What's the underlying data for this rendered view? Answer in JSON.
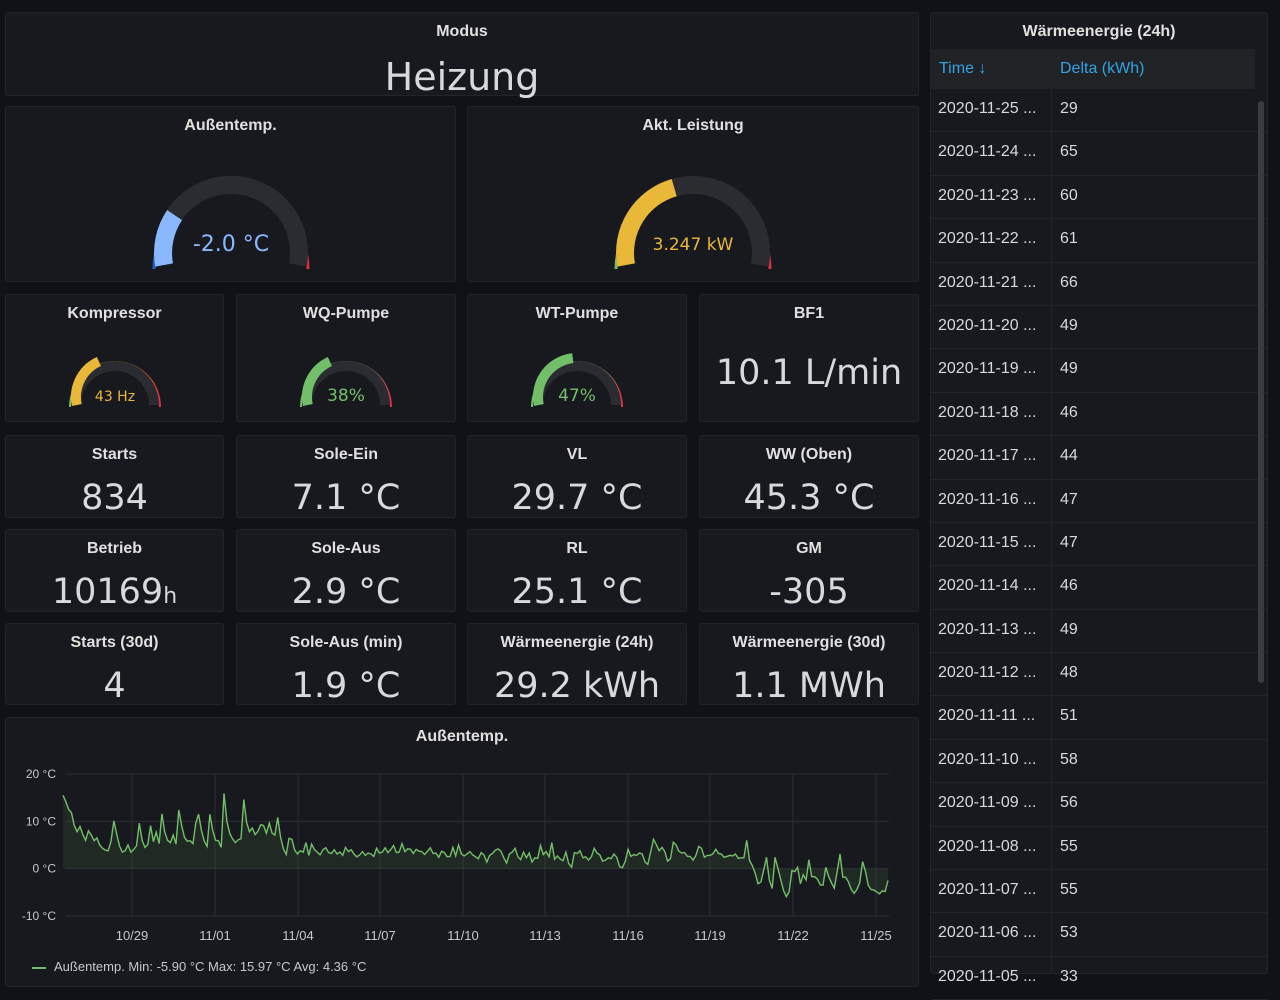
{
  "modus": {
    "title": "Modus",
    "value": "Heizung"
  },
  "aussentemp_gauge": {
    "title": "Außentemp.",
    "value": "-2.0 °C",
    "fraction": 0.22
  },
  "leistung_gauge": {
    "title": "Akt. Leistung",
    "value": "3.247 kW",
    "fraction": 0.42
  },
  "small_gauges": [
    {
      "title": "Kompressor",
      "value": "43 Hz",
      "color": "#eab839",
      "fraction": 0.38
    },
    {
      "title": "WQ-Pumpe",
      "value": "38%",
      "color": "#73bf69",
      "fraction": 0.38
    },
    {
      "title": "WT-Pumpe",
      "value": "47%",
      "color": "#73bf69",
      "fraction": 0.47
    }
  ],
  "bf1": {
    "title": "BF1",
    "value": "10.1 L/min"
  },
  "stats": [
    {
      "title": "Starts",
      "value": "834"
    },
    {
      "title": "Sole-Ein",
      "value": "7.1 °C"
    },
    {
      "title": "VL",
      "value": "29.7 °C"
    },
    {
      "title": "WW (Oben)",
      "value": "45.3 °C"
    },
    {
      "title": "Betrieb",
      "value": "10169",
      "unit": "h"
    },
    {
      "title": "Sole-Aus",
      "value": "2.9 °C"
    },
    {
      "title": "RL",
      "value": "25.1 °C"
    },
    {
      "title": "GM",
      "value": "-305"
    },
    {
      "title": "Starts (30d)",
      "value": "4"
    },
    {
      "title": "Sole-Aus (min)",
      "value": "1.9 °C"
    },
    {
      "title": "Wärmeenergie (24h)",
      "value": "29.2 kWh"
    },
    {
      "title": "Wärmeenergie (30d)",
      "value": "1.1 MWh"
    }
  ],
  "table": {
    "title": "Wärmeenergie (24h)",
    "col_time": "Time ↓",
    "col_delta": "Delta (kWh)",
    "rows": [
      [
        "2020-11-25 ...",
        "29"
      ],
      [
        "2020-11-24 ...",
        "65"
      ],
      [
        "2020-11-23 ...",
        "60"
      ],
      [
        "2020-11-22 ...",
        "61"
      ],
      [
        "2020-11-21 ...",
        "66"
      ],
      [
        "2020-11-20 ...",
        "49"
      ],
      [
        "2020-11-19 ...",
        "49"
      ],
      [
        "2020-11-18 ...",
        "46"
      ],
      [
        "2020-11-17 ...",
        "44"
      ],
      [
        "2020-11-16 ...",
        "47"
      ],
      [
        "2020-11-15 ...",
        "47"
      ],
      [
        "2020-11-14 ...",
        "46"
      ],
      [
        "2020-11-13 ...",
        "49"
      ],
      [
        "2020-11-12 ...",
        "48"
      ],
      [
        "2020-11-11 ...",
        "51"
      ],
      [
        "2020-11-10 ...",
        "58"
      ],
      [
        "2020-11-09 ...",
        "56"
      ],
      [
        "2020-11-08 ...",
        "55"
      ],
      [
        "2020-11-07 ...",
        "55"
      ],
      [
        "2020-11-06 ...",
        "53"
      ],
      [
        "2020-11-05 ...",
        "33"
      ]
    ]
  },
  "chart_data": {
    "type": "line",
    "title": "Außentemp.",
    "series": [
      {
        "name": "Außentemp.",
        "color": "#73bf69"
      }
    ],
    "ylim": [
      -10,
      20
    ],
    "yticks": [
      "20 °C",
      "10 °C",
      "0 °C",
      "-10 °C"
    ],
    "xticks": [
      "10/29",
      "11/01",
      "11/04",
      "11/07",
      "11/10",
      "11/13",
      "11/16",
      "11/19",
      "11/22",
      "11/25"
    ],
    "x_range_days": [
      "2020-10-27",
      "2020-11-25"
    ],
    "legend_text": "Außentemp.  Min: -5.90 °C  Max: 15.97 °C  Avg: 4.36 °C",
    "values": [
      15.5,
      14.2,
      12.5,
      11.8,
      9.1,
      7.8,
      8.9,
      7.2,
      6.0,
      8.0,
      7.1,
      5.9,
      6.5,
      5.0,
      4.3,
      3.9,
      3.8,
      5.8,
      10.1,
      7.3,
      4.8,
      3.5,
      3.8,
      5.0,
      3.5,
      4.0,
      4.8,
      9.6,
      6.0,
      4.5,
      5.1,
      9.1,
      5.7,
      7.7,
      5.3,
      11.6,
      7.8,
      6.0,
      5.5,
      7.1,
      5.2,
      12.4,
      9.1,
      6.6,
      5.8,
      5.9,
      5.3,
      9.7,
      11.5,
      8.1,
      5.8,
      4.7,
      11.5,
      8.1,
      6.0,
      5.9,
      4.5,
      15.9,
      10.0,
      7.5,
      6.3,
      5.5,
      6.1,
      6.3,
      14.6,
      9.8,
      7.8,
      8.6,
      7.2,
      7.9,
      9.3,
      9.1,
      7.5,
      9.6,
      7.5,
      7.1,
      10.8,
      6.6,
      4.2,
      3.0,
      6.4,
      6.2,
      3.9,
      3.1,
      3.8,
      3.5,
      5.5,
      2.8,
      5.2,
      4.0,
      3.5,
      2.9,
      4.0,
      4.4,
      3.4,
      3.2,
      4.0,
      3.1,
      3.5,
      2.8,
      4.5,
      3.6,
      4.0,
      3.1,
      2.5,
      2.9,
      3.6,
      2.8,
      3.3,
      3.1,
      2.6,
      4.3,
      3.3,
      3.5,
      4.4,
      3.4,
      4.0,
      4.9,
      3.4,
      3.5,
      5.3,
      3.6,
      4.2,
      4.1,
      3.2,
      4.1,
      3.7,
      3.6,
      3.0,
      3.7,
      4.4,
      3.2,
      3.3,
      2.4,
      3.7,
      3.4,
      2.5,
      2.6,
      4.5,
      2.7,
      5.0,
      3.1,
      2.7,
      3.1,
      3.6,
      2.9,
      2.5,
      2.1,
      3.4,
      2.9,
      1.4,
      2.8,
      3.2,
      3.9,
      4.2,
      3.7,
      2.3,
      1.2,
      3.1,
      3.5,
      4.3,
      2.5,
      1.9,
      3.5,
      2.3,
      3.3,
      1.4,
      2.3,
      2.2,
      4.9,
      3.0,
      3.6,
      2.5,
      5.5,
      2.0,
      2.7,
      2.0,
      1.7,
      3.5,
      1.1,
      0.3,
      3.4,
      3.2,
      3.8,
      2.3,
      2.5,
      1.8,
      2.5,
      4.3,
      3.3,
      2.9,
      1.6,
      1.8,
      2.3,
      2.1,
      3.1,
      2.4,
      0.4,
      0.2,
      1.5,
      4.1,
      2.6,
      3.0,
      2.8,
      3.3,
      3.1,
      1.4,
      0.9,
      3.6,
      6.2,
      5.1,
      3.8,
      4.5,
      3.6,
      1.6,
      2.1,
      5.6,
      5.0,
      3.7,
      3.3,
      3.4,
      2.6,
      2.6,
      1.8,
      2.8,
      4.7,
      4.3,
      2.4,
      2.8,
      2.8,
      3.1,
      4.1,
      3.2,
      3.1,
      2.4,
      2.6,
      2.8,
      2.7,
      3.1,
      2.2,
      2.3,
      2.3,
      6.0,
      1.7,
      0.6,
      -1.0,
      -3.2,
      -2.8,
      -0.3,
      2.4,
      -2.4,
      -4.2,
      2.4,
      0.2,
      -2.2,
      -4.6,
      -5.9,
      -4.9,
      -0.4,
      -0.6,
      0.3,
      -3.2,
      -1.3,
      -2.4,
      1.9,
      -1.7,
      -1.7,
      -2.2,
      -3.4,
      -3.5,
      0.3,
      -1.7,
      -3.0,
      -4.1,
      -0.7,
      3.1,
      -1.8,
      -1.8,
      -2.8,
      -4.4,
      -5.2,
      -4.4,
      -3.0,
      1.5,
      -0.5,
      -3.5,
      -4.4,
      -4.5,
      -4.9,
      -5.3,
      -4.7,
      -4.8,
      -2.5
    ]
  }
}
